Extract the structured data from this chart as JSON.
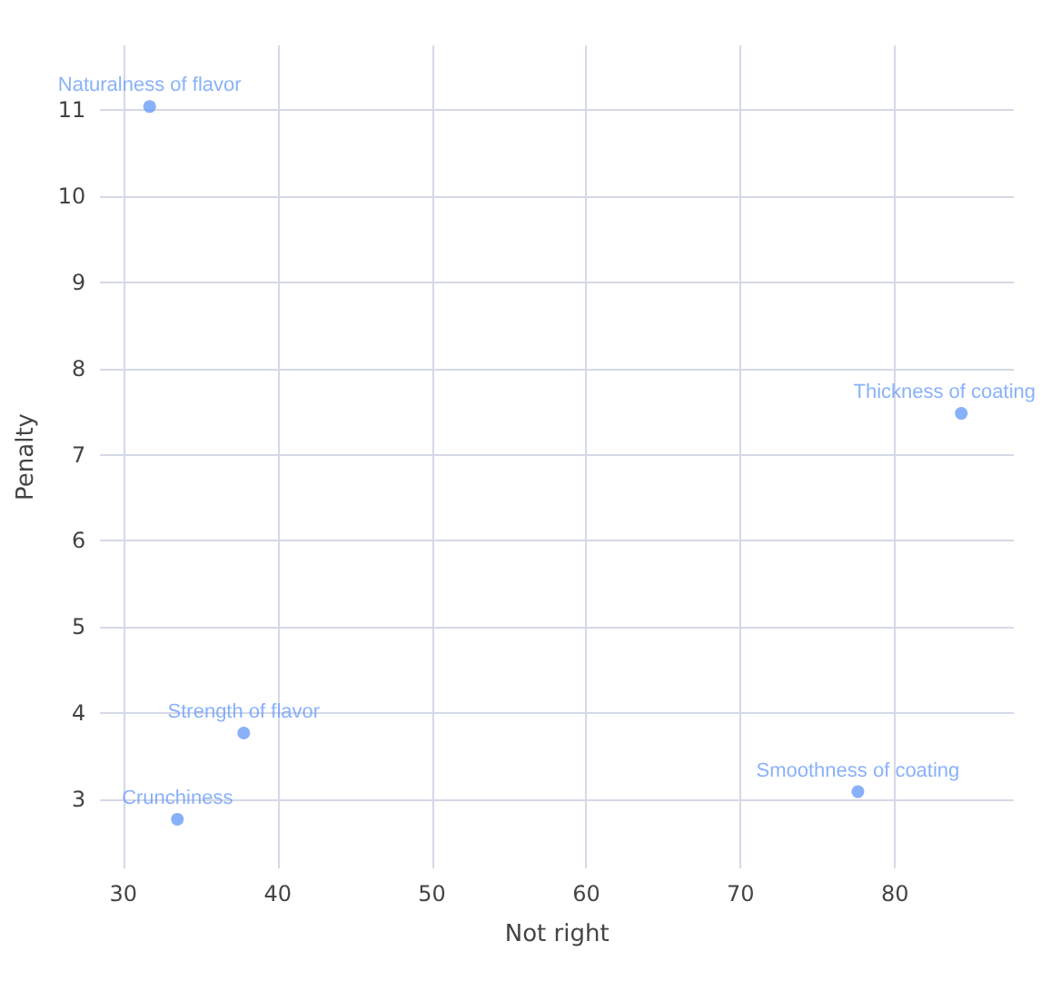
{
  "chart_data": {
    "type": "scatter",
    "xlabel": "Not right",
    "ylabel": "Penalty",
    "x": [
      31.7,
      84.3,
      37.8,
      33.5,
      77.6
    ],
    "series": [
      {
        "color": "#6c9ef8",
        "values": [
          11.04,
          7.48,
          3.77,
          2.77,
          3.09
        ]
      }
    ],
    "xlim": [
      28.5,
      87.7
    ],
    "xticks": [
      30,
      40,
      50,
      60,
      70,
      80
    ],
    "ylim": [
      2.2,
      11.75
    ],
    "yticks": [
      3,
      4,
      5,
      6,
      7,
      8,
      9,
      10,
      11
    ],
    "grid": true,
    "marker": "circle",
    "annotations": [
      {
        "text": "Naturalness of flavor",
        "x": 31.7,
        "y": 11.04
      },
      {
        "text": "Thickness of coating",
        "x": 84.3,
        "y": 7.48
      },
      {
        "text": "Strength of flavor",
        "x": 37.8,
        "y": 3.77
      },
      {
        "text": "Crunchiness",
        "x": 33.5,
        "y": 2.77
      },
      {
        "text": "Smoothness of coating",
        "x": 77.6,
        "y": 3.09
      }
    ]
  }
}
